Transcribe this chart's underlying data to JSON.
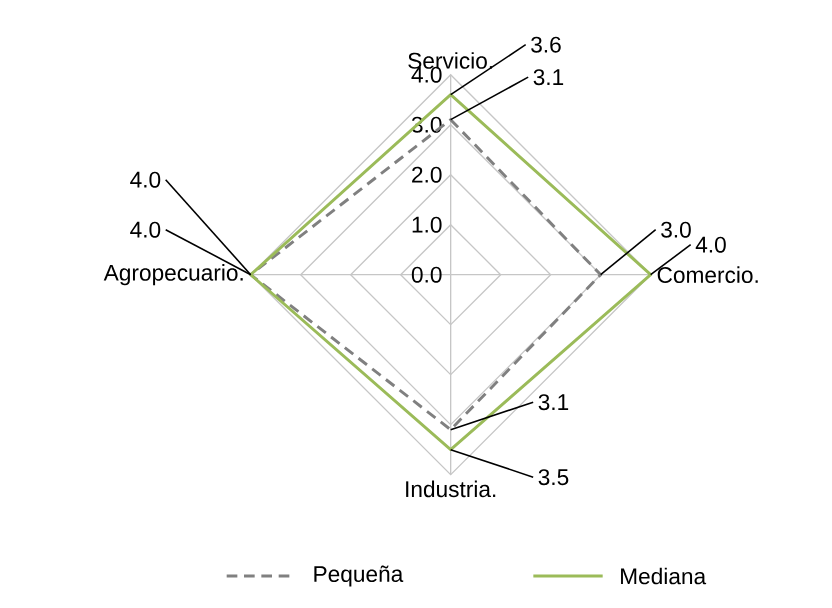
{
  "chart_data": {
    "type": "radar",
    "categories": [
      "Servicio.",
      "Comercio.",
      "Industria.",
      "Agropecuario."
    ],
    "ylim": [
      0,
      4
    ],
    "yticks": [
      {
        "value": 0,
        "label": "0.0"
      },
      {
        "value": 1,
        "label": "1.0"
      },
      {
        "value": 2,
        "label": "2.0"
      },
      {
        "value": 3,
        "label": "3.0"
      },
      {
        "value": 4,
        "label": "4.0"
      }
    ],
    "grid": true,
    "legend": "bottom",
    "series": [
      {
        "name": "Pequeña",
        "color": "#808080",
        "line_style": "dashed",
        "values": [
          3.1,
          3.0,
          3.1,
          4.0
        ],
        "value_labels": [
          "3.1",
          "3.0",
          "3.1",
          "4.0"
        ]
      },
      {
        "name": "Mediana",
        "color": "#9bbb59",
        "line_style": "solid",
        "values": [
          3.6,
          4.0,
          3.5,
          4.0
        ],
        "value_labels": [
          "3.6",
          "4.0",
          "3.5",
          "4.0"
        ]
      }
    ]
  }
}
